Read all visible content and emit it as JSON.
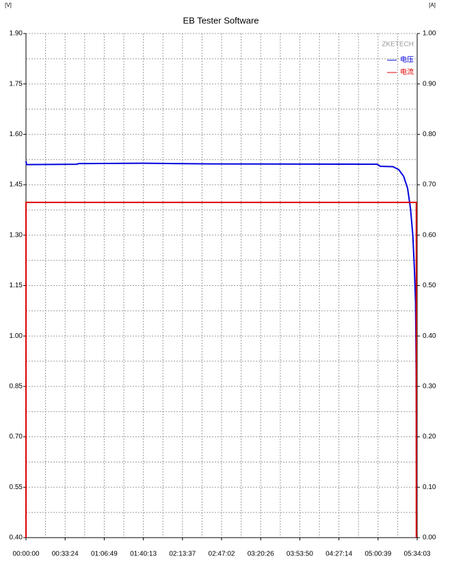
{
  "chart_data": {
    "type": "line",
    "title": "EB Tester Software",
    "y_label": "[V]",
    "y2_label": "[A]",
    "watermark": "ZKETECH",
    "legend": "top-right",
    "grid": true,
    "xlim": [
      0,
      20043
    ],
    "xticks": [
      {
        "value": 0,
        "label": "00:00:00"
      },
      {
        "value": 2004,
        "label": "00:33:24"
      },
      {
        "value": 4009,
        "label": "01:06:49"
      },
      {
        "value": 6013,
        "label": "01:40:13"
      },
      {
        "value": 8017,
        "label": "02:13:37"
      },
      {
        "value": 10022,
        "label": "02:47:02"
      },
      {
        "value": 12026,
        "label": "03:20:26"
      },
      {
        "value": 14030,
        "label": "03:53:50"
      },
      {
        "value": 16034,
        "label": "04:27:14"
      },
      {
        "value": 18039,
        "label": "05:00:39"
      },
      {
        "value": 20043,
        "label": "05:34:03"
      }
    ],
    "ylim": [
      0.4,
      1.9
    ],
    "yticks": [
      {
        "value": 0.4,
        "label": "0.40"
      },
      {
        "value": 0.55,
        "label": "0.55"
      },
      {
        "value": 0.7,
        "label": "0.70"
      },
      {
        "value": 0.85,
        "label": "0.85"
      },
      {
        "value": 1.0,
        "label": "1.00"
      },
      {
        "value": 1.15,
        "label": "1.15"
      },
      {
        "value": 1.3,
        "label": "1.30"
      },
      {
        "value": 1.45,
        "label": "1.45"
      },
      {
        "value": 1.6,
        "label": "1.60"
      },
      {
        "value": 1.75,
        "label": "1.75"
      },
      {
        "value": 1.9,
        "label": "1.90"
      }
    ],
    "y2lim": [
      0,
      1
    ],
    "y2ticks": [
      {
        "value": 0,
        "label": "0.00"
      },
      {
        "value": 0.1,
        "label": "0.10"
      },
      {
        "value": 0.2,
        "label": "0.20"
      },
      {
        "value": 0.3,
        "label": "0.30"
      },
      {
        "value": 0.4,
        "label": "0.40"
      },
      {
        "value": 0.5,
        "label": "0.50"
      },
      {
        "value": 0.6,
        "label": "0.60"
      },
      {
        "value": 0.7,
        "label": "0.70"
      },
      {
        "value": 0.8,
        "label": "0.80"
      },
      {
        "value": 0.9,
        "label": "0.90"
      },
      {
        "value": 1.0,
        "label": "1.00"
      }
    ],
    "series": [
      {
        "name": "电压",
        "color": "#0000dd",
        "x": [
          0,
          30,
          2600,
          2700,
          6000,
          9500,
          18000,
          18150,
          18800,
          19100,
          19350,
          19550,
          19700,
          19820,
          19900,
          19960,
          19985,
          20000,
          20010
        ],
        "values": [
          1.52,
          1.51,
          1.511,
          1.513,
          1.514,
          1.512,
          1.511,
          1.505,
          1.504,
          1.495,
          1.475,
          1.44,
          1.38,
          1.3,
          1.2,
          1.1,
          0.95,
          0.82,
          0.48
        ]
      },
      {
        "name": "电流",
        "color": "#dd0000",
        "axis": "y2",
        "x": [
          0,
          0,
          20000,
          20000
        ],
        "values": [
          0,
          0.665,
          0.665,
          0
        ]
      }
    ]
  }
}
